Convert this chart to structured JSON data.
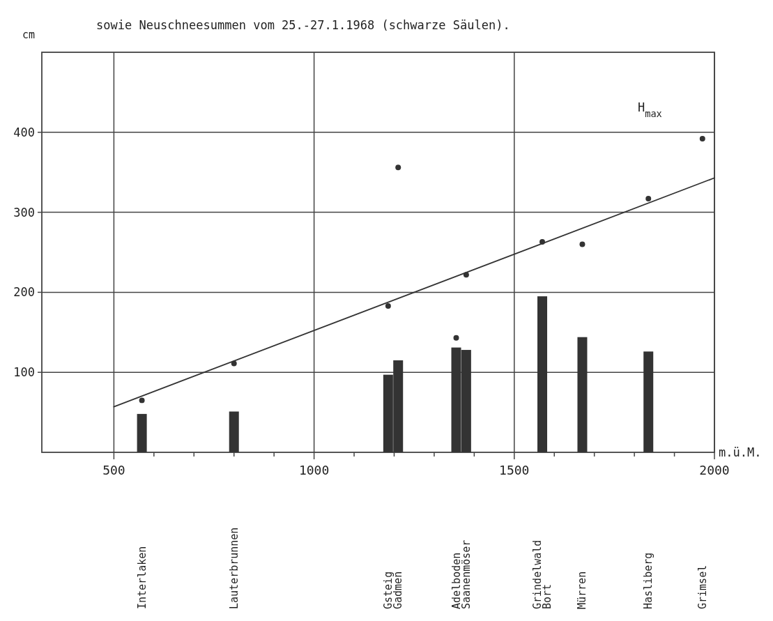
{
  "chart_data": {
    "type": "bar",
    "title": "sowie Neuschneesummen vom 25.-27.1.1968 (schwarze Säulen).",
    "xlabel": "m.ü.M.",
    "ylabel": "cm",
    "xlim": [
      320,
      2000
    ],
    "xticks": [
      500,
      {
        "value": 600,
        "label": null
      },
      {
        "value": 700,
        "label": null
      },
      {
        "value": 800,
        "label": null
      },
      {
        "value": 900,
        "label": null
      },
      1000,
      {
        "value": 1100,
        "label": null
      },
      {
        "value": 1200,
        "label": null
      },
      {
        "value": 1300,
        "label": null
      },
      {
        "value": 1400,
        "label": null
      },
      1500,
      {
        "value": 1600,
        "label": null
      },
      {
        "value": 1700,
        "label": null
      },
      {
        "value": 1800,
        "label": null
      },
      {
        "value": 1900,
        "label": null
      },
      2000
    ],
    "ylim": [
      0,
      500
    ],
    "yticks": [
      100,
      200,
      300,
      400
    ],
    "grid": true,
    "legend": false,
    "series": [
      {
        "color": "#333333",
        "x": [
          570,
          800,
          1185,
          1210,
          1355,
          1380,
          1570,
          1670,
          1835
        ],
        "values": [
          48,
          51,
          97,
          115,
          131,
          128,
          195,
          144,
          126
        ]
      },
      {
        "type": "scatter",
        "color": "#333333",
        "marker": "circle",
        "x": [
          570,
          800,
          1185,
          1210,
          1355,
          1380,
          1570,
          1670,
          1835,
          1970
        ],
        "values": [
          65,
          111,
          183,
          356,
          143,
          222,
          263,
          260,
          317,
          392
        ]
      },
      {
        "type": "line",
        "name": "H$_{max}$",
        "color": "#333333",
        "line_style": "solid",
        "x": [
          500,
          2000
        ],
        "values": [
          57,
          343
        ]
      }
    ],
    "annotations": [
      "Interlaken",
      "Lauterbrunnen",
      "Gsteig",
      "Gadmen",
      "Adelboden",
      "Saanenmöser",
      "Grindelwald Bort",
      "Mürren",
      "Hasliberg",
      "Grimsel"
    ]
  }
}
